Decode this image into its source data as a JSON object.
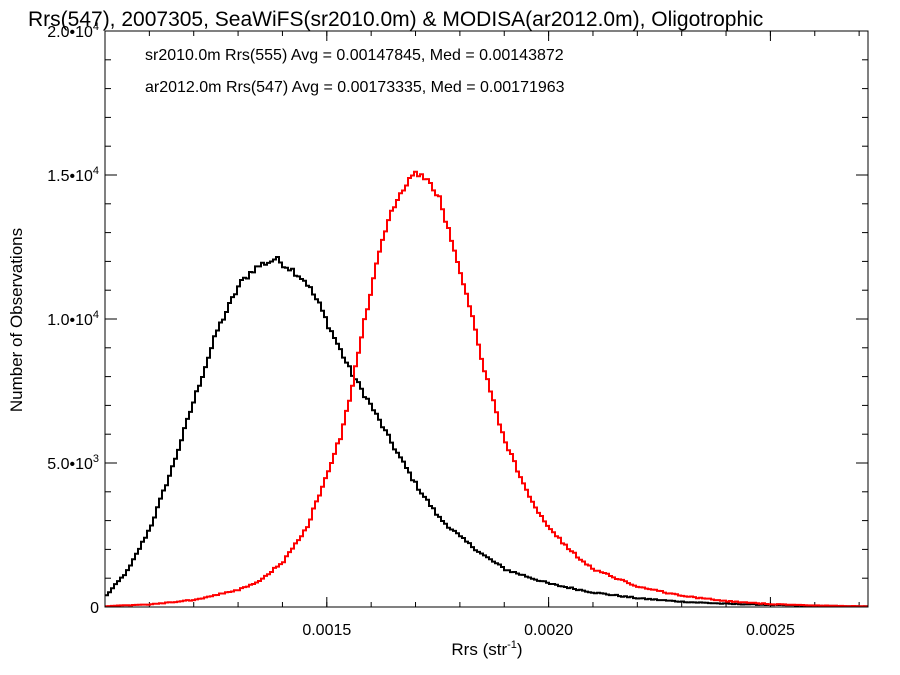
{
  "chart_data": {
    "type": "line",
    "title": "Rrs(547), 2007305, SeaWiFS(sr2010.0m) & MODISA(ar2012.0m), Oligotrophic",
    "xlabel": "Rrs (str",
    "xlabel_sup": "-1",
    "xlabel_end": ")",
    "ylabel": "Number of Observations",
    "xlim": [
      0.001,
      0.00272
    ],
    "ylim": [
      0,
      20000
    ],
    "grid": false,
    "x_ticks": [
      {
        "value": 0.0015,
        "label": "0.0015"
      },
      {
        "value": 0.002,
        "label": "0.0020"
      },
      {
        "value": 0.0025,
        "label": "0.0025"
      }
    ],
    "y_ticks": [
      {
        "value": 0,
        "mant": "0",
        "exp": ""
      },
      {
        "value": 5000,
        "mant": "5.0•10",
        "exp": "3"
      },
      {
        "value": 10000,
        "mant": "1.0•10",
        "exp": "4"
      },
      {
        "value": 15000,
        "mant": "1.5•10",
        "exp": "4"
      },
      {
        "value": 20000,
        "mant": "2.0•10",
        "exp": "4"
      }
    ],
    "series": [
      {
        "name": "sr2010.0m Rrs(555) Avg = 0.00147845, Med = 0.00143872",
        "color": "#000000",
        "x": [
          0.001,
          0.00105,
          0.0011,
          0.00115,
          0.0012,
          0.00125,
          0.0013,
          0.00133,
          0.00135,
          0.00137,
          0.00138,
          0.0014,
          0.00142,
          0.00145,
          0.00148,
          0.0015,
          0.00155,
          0.0016,
          0.00165,
          0.0017,
          0.00175,
          0.0018,
          0.00185,
          0.0019,
          0.002,
          0.0021,
          0.0022,
          0.0023,
          0.0024,
          0.0025,
          0.0026,
          0.00272
        ],
        "values": [
          400,
          1300,
          2800,
          4900,
          7300,
          9600,
          11200,
          11700,
          11900,
          12000,
          12100,
          11900,
          11700,
          11300,
          10500,
          9800,
          8200,
          6900,
          5500,
          4200,
          3100,
          2400,
          1800,
          1300,
          800,
          500,
          300,
          180,
          110,
          70,
          40,
          20
        ]
      },
      {
        "name": "ar2012.0m Rrs(547) Avg = 0.00173335, Med = 0.00171963",
        "color": "#ff0000",
        "x": [
          0.001,
          0.0011,
          0.0012,
          0.0013,
          0.00135,
          0.0014,
          0.00145,
          0.0015,
          0.00153,
          0.00155,
          0.00157,
          0.0016,
          0.00162,
          0.00165,
          0.00167,
          0.0017,
          0.00172,
          0.00175,
          0.00178,
          0.0018,
          0.00183,
          0.00185,
          0.00188,
          0.0019,
          0.00195,
          0.002,
          0.00205,
          0.0021,
          0.0022,
          0.0023,
          0.0024,
          0.0025,
          0.0026,
          0.00272
        ],
        "values": [
          30,
          90,
          250,
          600,
          950,
          1600,
          2700,
          4700,
          6000,
          7400,
          9000,
          11300,
          12600,
          14000,
          14600,
          15100,
          14900,
          14200,
          12700,
          11500,
          9700,
          8400,
          6700,
          5700,
          3900,
          2700,
          1900,
          1300,
          700,
          380,
          200,
          100,
          50,
          20
        ]
      }
    ]
  }
}
